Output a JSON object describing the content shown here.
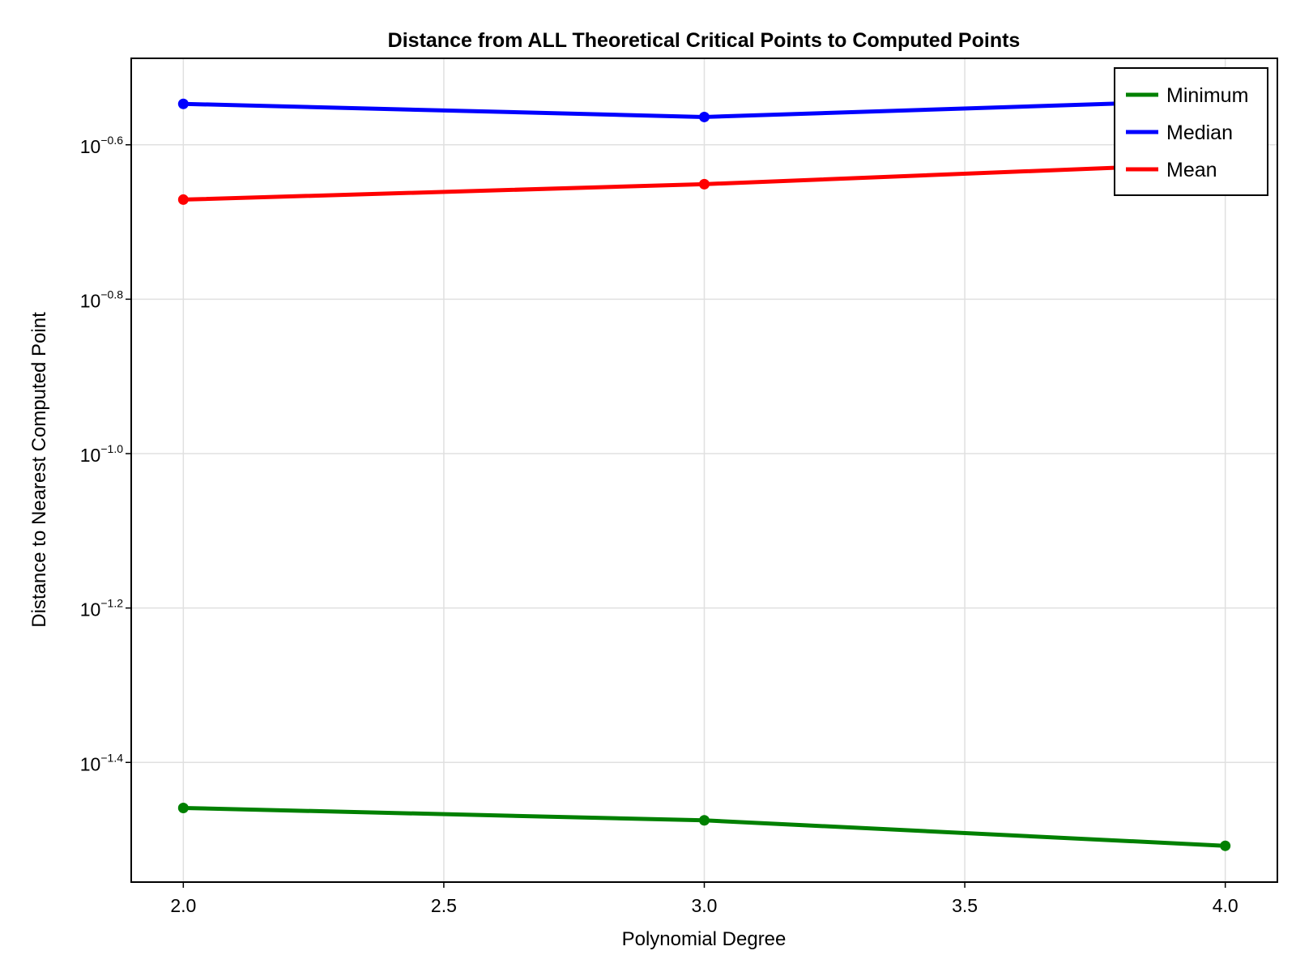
{
  "chart_data": {
    "type": "line",
    "title": "Distance from ALL Theoretical Critical Points to Computed Points",
    "xlabel": "Polynomial Degree",
    "ylabel": "Distance to Nearest Computed Point",
    "y_scale": "log10",
    "x": [
      2.0,
      3.0,
      4.0
    ],
    "x_ticks": [
      "2.0",
      "2.5",
      "3.0",
      "3.5",
      "4.0"
    ],
    "x_tick_values": [
      2.0,
      2.5,
      3.0,
      3.5,
      4.0
    ],
    "y_ticks": [
      {
        "value": -0.6,
        "base": "10",
        "exp": "−0.6"
      },
      {
        "value": -0.8,
        "base": "10",
        "exp": "−0.8"
      },
      {
        "value": -1.0,
        "base": "10",
        "exp": "−1.0"
      },
      {
        "value": -1.2,
        "base": "10",
        "exp": "−1.2"
      },
      {
        "value": -1.4,
        "base": "10",
        "exp": "−1.4"
      }
    ],
    "xlim": [
      1.9,
      4.1
    ],
    "ylim_log10": [
      -1.555,
      -0.488
    ],
    "grid": true,
    "legend_position": "top-right",
    "series": [
      {
        "name": "Minimum",
        "color": "#008000",
        "log10_values": [
          -1.459,
          -1.475,
          -1.508
        ]
      },
      {
        "name": "Median",
        "color": "#0000ff",
        "log10_values": [
          -0.547,
          -0.564,
          -0.542
        ]
      },
      {
        "name": "Mean",
        "color": "#ff0000",
        "log10_values": [
          -0.671,
          -0.651,
          -0.624
        ]
      }
    ]
  }
}
